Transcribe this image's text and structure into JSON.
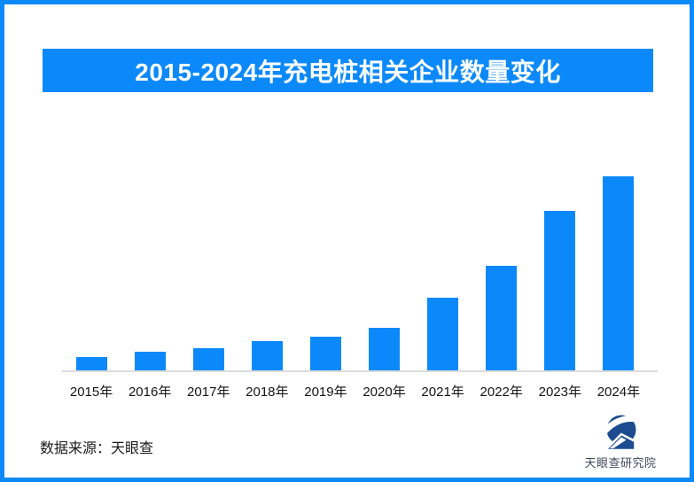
{
  "theme": {
    "accent": "#0b89fb",
    "axis_line_color": "#dcdcdc",
    "logo_navy": "#1d4b8f",
    "brand_text_color": "#3f4b5e",
    "background": "#ffffff"
  },
  "header": {
    "title": "2015-2024年充电桩相关企业数量变化"
  },
  "chart_data": {
    "type": "bar",
    "title": "2015-2024年充电桩相关企业数量变化",
    "categories": [
      "2015年",
      "2016年",
      "2017年",
      "2018年",
      "2019年",
      "2020年",
      "2021年",
      "2022年",
      "2023年",
      "2024年"
    ],
    "values": [
      6.9,
      9.5,
      11.6,
      15.0,
      17.4,
      21.7,
      37.4,
      54.1,
      82.1,
      100
    ],
    "value_scale": "relative index, 2024 = 100 (chart displays no numeric axis, gridlines or data labels)",
    "xlabel": "",
    "ylabel": "",
    "ylim": [
      0,
      100
    ],
    "grid": false,
    "legend": false,
    "bar_color": "#0b89fb"
  },
  "footer": {
    "source_label": "数据来源：天眼查",
    "brand_name": "天眼查研究院"
  }
}
